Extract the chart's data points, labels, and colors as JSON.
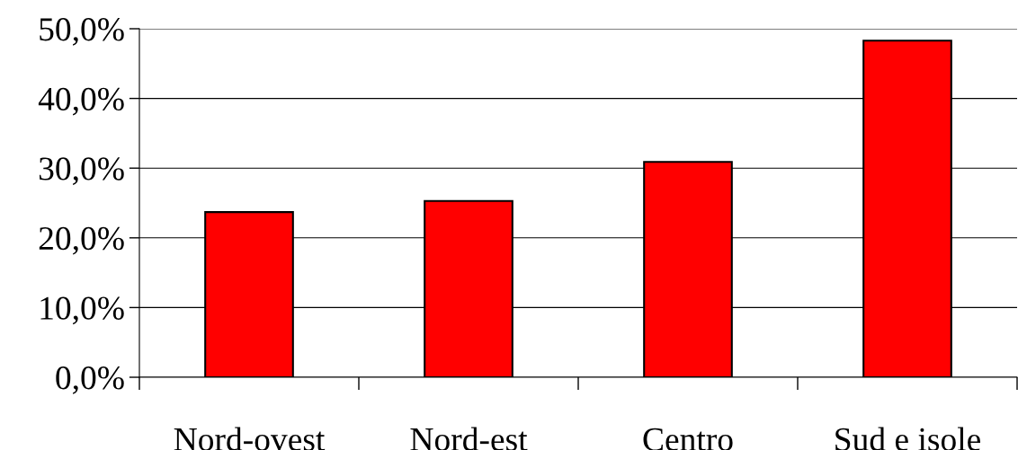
{
  "chart_data": {
    "type": "bar",
    "categories": [
      "Nord-ovest",
      "Nord-est",
      "Centro",
      "Sud e isole"
    ],
    "values": [
      23.7,
      25.3,
      30.9,
      48.3
    ],
    "color": "#ff0000",
    "ylim": [
      0,
      50
    ],
    "yticks": [
      {
        "value": 0,
        "label": "0,0%"
      },
      {
        "value": 10,
        "label": "10,0%"
      },
      {
        "value": 20,
        "label": "20,0%"
      },
      {
        "value": 30,
        "label": "30,0%"
      },
      {
        "value": 40,
        "label": "40,0%"
      },
      {
        "value": 50,
        "label": "50,0%"
      }
    ],
    "grid": "y",
    "legend": false
  }
}
